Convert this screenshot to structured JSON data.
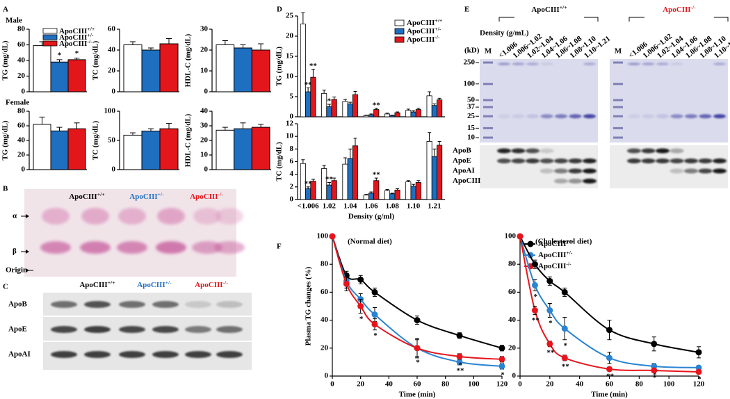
{
  "panel_labels": [
    "A",
    "B",
    "C",
    "D",
    "E",
    "F"
  ],
  "panel_a": {
    "sections": [
      "Male",
      "Female"
    ]
  },
  "chart_data": [
    {
      "type": "bar",
      "ylabel": "TG (mg/dL)",
      "values": [
        59,
        38,
        41
      ],
      "errors": [
        5,
        3,
        2
      ],
      "significance": [
        null,
        "*",
        "*"
      ],
      "colors": [
        "#ffffff",
        "#1f6fc0",
        "#e3161c"
      ],
      "legend": [
        "ApoCIII+/+",
        "ApoCIII+/-",
        "ApoCIII-/-"
      ],
      "ylim": [
        0,
        80
      ],
      "yticks": [
        0,
        20,
        40,
        60,
        80
      ]
    },
    {
      "type": "bar",
      "ylabel": "TC (mg/dL)",
      "values": [
        45,
        40,
        46
      ],
      "errors": [
        3,
        2,
        5
      ],
      "colors": [
        "#ffffff",
        "#1f6fc0",
        "#e3161c"
      ],
      "ylim": [
        0,
        60
      ],
      "yticks": [
        0,
        20,
        40,
        60
      ]
    },
    {
      "type": "bar",
      "ylabel": "HDL-C (mg/dL)",
      "values": [
        22.5,
        21,
        20
      ],
      "errors": [
        2,
        1.5,
        3
      ],
      "colors": [
        "#ffffff",
        "#1f6fc0",
        "#e3161c"
      ],
      "ylim": [
        0,
        30
      ],
      "yticks": [
        0,
        10,
        20,
        30
      ]
    },
    {
      "type": "bar",
      "ylabel": "TG (mg/dL)",
      "values": [
        62,
        53,
        56
      ],
      "errors": [
        10,
        5,
        8
      ],
      "colors": [
        "#ffffff",
        "#1f6fc0",
        "#e3161c"
      ],
      "ylim": [
        0,
        80
      ],
      "yticks": [
        0,
        20,
        40,
        60,
        80
      ]
    },
    {
      "type": "bar",
      "ylabel": "TC (mg/dL)",
      "values": [
        59,
        66,
        70
      ],
      "errors": [
        4,
        4,
        9
      ],
      "colors": [
        "#ffffff",
        "#1f6fc0",
        "#e3161c"
      ],
      "ylim": [
        0,
        100
      ],
      "yticks": [
        0,
        50,
        100
      ]
    },
    {
      "type": "bar",
      "ylabel": "HDL-C (mg/dL)",
      "values": [
        27,
        28,
        29
      ],
      "errors": [
        2,
        4,
        2
      ],
      "colors": [
        "#ffffff",
        "#1f6fc0",
        "#e3161c"
      ],
      "ylim": [
        0,
        40
      ],
      "yticks": [
        0,
        10,
        20,
        30,
        40
      ]
    },
    {
      "type": "grouped-bar",
      "ylabel": "TG (mg/dL)",
      "ylim": [
        0,
        25
      ],
      "yticks": [
        0,
        5,
        10,
        15,
        20,
        25
      ],
      "series": [
        {
          "name": "ApoCIII+/+",
          "color": "#ffffff",
          "values": [
            23,
            5.8,
            3.8,
            0.3,
            0.7,
            1.6,
            5.2
          ],
          "errors": [
            2.8,
            0.8,
            0.5,
            0.1,
            0.2,
            0.3,
            1.0
          ]
        },
        {
          "name": "ApoCIII+/-",
          "color": "#1f6fc0",
          "values": [
            6.2,
            2.5,
            3.2,
            0.5,
            0.3,
            1.2,
            2.8
          ],
          "errors": [
            1.0,
            0.6,
            0.4,
            0.2,
            0.1,
            0.3,
            0.4
          ],
          "significance": [
            "**",
            "*",
            null,
            null,
            null,
            null,
            null
          ]
        },
        {
          "name": "ApoCIII-/-",
          "color": "#e3161c",
          "values": [
            9.8,
            4.3,
            5.5,
            1.8,
            1.0,
            1.8,
            4.2
          ],
          "errors": [
            2.0,
            0.6,
            0.8,
            0.3,
            0.2,
            0.3,
            0.4
          ],
          "significance": [
            "**",
            null,
            null,
            "**",
            null,
            null,
            null
          ]
        }
      ]
    },
    {
      "type": "grouped-bar",
      "ylabel": "TC (mg/dL)",
      "xlabel": "Density (g/ml)",
      "categories": [
        "<1.006",
        "1.02",
        "1.04",
        "1.06",
        "1.08",
        "1.10",
        "1.21"
      ],
      "ylim": [
        0,
        12
      ],
      "yticks": [
        0,
        2,
        4,
        6,
        8,
        10,
        12
      ],
      "series": [
        {
          "color": "#ffffff",
          "values": [
            5.7,
            4.9,
            5.6,
            0.7,
            1.4,
            2.8,
            9.2
          ],
          "errors": [
            0.6,
            0.5,
            1.0,
            0.1,
            0.2,
            0.2,
            1.4
          ]
        },
        {
          "color": "#1f6fc0",
          "values": [
            1.7,
            2.3,
            6.5,
            1.0,
            0.9,
            2.1,
            6.8
          ],
          "errors": [
            0.3,
            0.4,
            1.5,
            0.2,
            0.1,
            0.3,
            1.2
          ],
          "significance": [
            "**",
            "**",
            null,
            null,
            null,
            null,
            null
          ]
        },
        {
          "color": "#e3161c",
          "values": [
            2.9,
            3.0,
            8.5,
            3.0,
            1.5,
            2.7,
            8.6
          ],
          "errors": [
            0.3,
            0.4,
            1.2,
            0.4,
            0.2,
            0.3,
            0.6
          ],
          "significance": [
            null,
            null,
            null,
            "**",
            null,
            null,
            null
          ]
        }
      ]
    },
    {
      "type": "line",
      "title": "(Normal diet)",
      "xlabel": "Time (min)",
      "ylabel": "Plasma TG changes (%)",
      "x": [
        0,
        10,
        20,
        30,
        60,
        90,
        120
      ],
      "xlim": [
        0,
        120
      ],
      "xticks": [
        0,
        20,
        40,
        60,
        80,
        100,
        120
      ],
      "ylim": [
        0,
        100
      ],
      "yticks": [
        0,
        20,
        40,
        60,
        80,
        100
      ],
      "series": [
        {
          "name": "ApoCIII+/+",
          "color": "#000000",
          "values": [
            100,
            72,
            69,
            60,
            40,
            29,
            20
          ],
          "errors": [
            0,
            3,
            3,
            3,
            3,
            2,
            2
          ]
        },
        {
          "name": "ApoCIII+/-",
          "color": "#2a84d2",
          "values": [
            100,
            68,
            55,
            44,
            20,
            10,
            7
          ],
          "errors": [
            0,
            5,
            4,
            5,
            6,
            2,
            2
          ],
          "significance": [
            null,
            null,
            null,
            null,
            "*",
            "**",
            "*"
          ]
        },
        {
          "name": "ApoCIII-/-",
          "color": "#e8141c",
          "values": [
            100,
            66,
            50,
            37,
            20,
            14,
            12
          ],
          "errors": [
            0,
            5,
            5,
            4,
            7,
            2,
            2
          ],
          "significance": [
            null,
            null,
            "*",
            "*",
            null,
            "*",
            null
          ]
        }
      ]
    },
    {
      "type": "line",
      "title": "(Cholesterol diet)",
      "xlabel": "Time (min)",
      "x": [
        0,
        10,
        20,
        30,
        60,
        90,
        120
      ],
      "xlim": [
        0,
        120
      ],
      "xticks": [
        0,
        20,
        40,
        60,
        80,
        100,
        120
      ],
      "ylim": [
        0,
        100
      ],
      "yticks": [
        0,
        20,
        40,
        60,
        80,
        100
      ],
      "series": [
        {
          "color": "#000000",
          "values": [
            100,
            80,
            68,
            60,
            33,
            23,
            17
          ],
          "errors": [
            0,
            3,
            3,
            3,
            7,
            5,
            4
          ]
        },
        {
          "color": "#2a84d2",
          "values": [
            100,
            65,
            47,
            34,
            13,
            7,
            6
          ],
          "errors": [
            0,
            4,
            5,
            8,
            4,
            2,
            1
          ],
          "significance": [
            null,
            "*",
            "*",
            "*",
            "*",
            "*",
            null
          ]
        },
        {
          "color": "#e8141c",
          "values": [
            100,
            47,
            23,
            13,
            5,
            4,
            3
          ],
          "errors": [
            0,
            3,
            2,
            2,
            1,
            1,
            1
          ],
          "significance": [
            null,
            "**",
            "**",
            "**",
            "**",
            "*",
            "*"
          ]
        }
      ]
    }
  ],
  "blot_b": {
    "headers": [
      {
        "text": "ApoCIII+/+",
        "color": "#000000"
      },
      {
        "text": "ApoCIII+/-",
        "color": "#1f6fc0"
      },
      {
        "text": "ApoCIII-/-",
        "color": "#e3161c"
      }
    ],
    "markers": [
      "α",
      "β",
      "Origin"
    ]
  },
  "blot_c": {
    "headers": [
      {
        "text": "ApoCIII+/+",
        "color": "#000000"
      },
      {
        "text": "ApoCIII+/-",
        "color": "#1f6fc0"
      },
      {
        "text": "ApoCIII-/-",
        "color": "#e3161c"
      }
    ],
    "rows": [
      "ApoB",
      "ApoE",
      "ApoAI"
    ]
  },
  "blot_e": {
    "groups": [
      {
        "text": "ApoCIII+/+",
        "color": "#000000"
      },
      {
        "text": "ApoCIII-/-",
        "color": "#e3161c"
      }
    ],
    "density_label": "Density (g/mL)",
    "kd_label": "(kD)",
    "marker_lane": "M",
    "fractions": [
      "<1.006",
      "1.006~1.02",
      "1.02~1.04",
      "1.04~1.06",
      "1.06~1.08",
      "1.08~1.10",
      "1.10~1.21"
    ],
    "mw": [
      250,
      100,
      50,
      37,
      25,
      15,
      10
    ],
    "rows": [
      "ApoB",
      "ApoE",
      "ApoAI",
      "ApoCIII"
    ]
  }
}
